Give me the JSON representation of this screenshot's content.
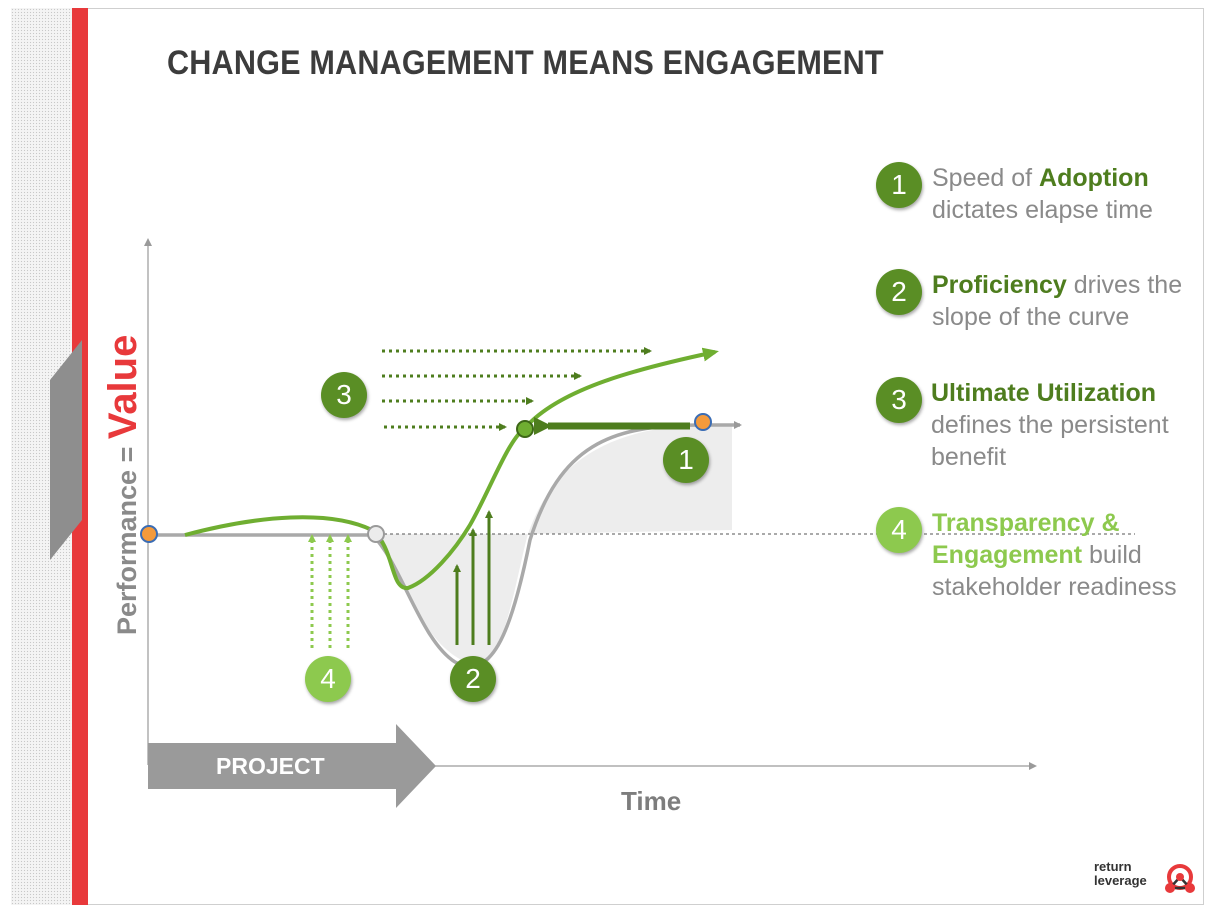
{
  "title": "CHANGE MANAGEMENT MEANS ENGAGEMENT",
  "axes": {
    "y_label_prefix": "Performance = ",
    "y_label_value": "Value",
    "x_label": "Time"
  },
  "project_label": "PROJECT",
  "diagram_badges": [
    {
      "number": "3",
      "style": "dark"
    },
    {
      "number": "1",
      "style": "dark"
    },
    {
      "number": "4",
      "style": "light"
    },
    {
      "number": "2",
      "style": "dark"
    }
  ],
  "legend": [
    {
      "number": "1",
      "style": "dark",
      "highlight": "Adoption",
      "pre": "Speed of ",
      "post": " dictates elapse time"
    },
    {
      "number": "2",
      "style": "dark",
      "highlight": "Proficiency",
      "pre": "",
      "post": " drives the slope of the curve"
    },
    {
      "number": "3",
      "style": "dark",
      "highlight": "Ultimate Utilization",
      "pre": "",
      "post": " defines the persistent benefit"
    },
    {
      "number": "4",
      "style": "light",
      "highlight": "Transparency & Engagement",
      "pre": "",
      "post": " build stakeholder readiness"
    }
  ],
  "logo": {
    "line1": "return",
    "line2": "leverage"
  },
  "colors": {
    "red": "#e8393b",
    "dark_green": "#5a8e25",
    "light_green": "#8dc94e",
    "curve_green": "#6fae31",
    "gray_curve": "#a9a9a9",
    "orange_marker": "#f39a3c"
  }
}
